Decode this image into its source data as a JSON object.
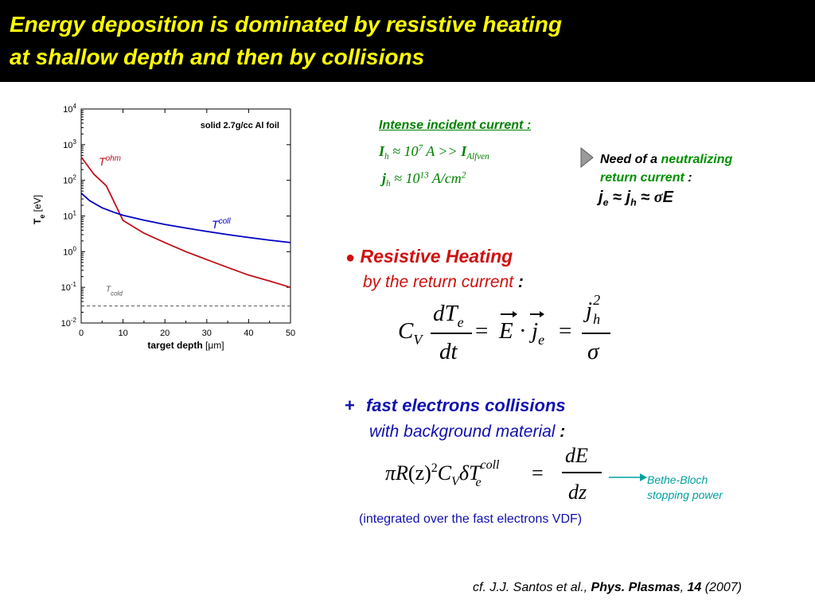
{
  "slide": {
    "title_line1": "Energy deposition is dominated by resistive heating",
    "title_line2": "at shallow depth and then by collisions",
    "title_color": "#ffff00"
  },
  "chart_data": {
    "type": "line",
    "title": "solid 2.7g/cc Al foil",
    "xlabel_bold": "target depth",
    "xlabel_unit": "[μm]",
    "ylabel_main": "T",
    "ylabel_sub": "e",
    "ylabel_unit": "[eV]",
    "xlim": [
      0,
      50
    ],
    "ylim_log10": [
      -2,
      4
    ],
    "y_log_scale": true,
    "x_ticks": [
      "0",
      "10",
      "20",
      "30",
      "40",
      "50"
    ],
    "x_tick_values": [
      0,
      10,
      20,
      30,
      40,
      50
    ],
    "y_tick_base": "10",
    "y_tick_exponents": [
      "-2",
      "-1",
      "0",
      "1",
      "2",
      "3",
      "4"
    ],
    "y_tick_values_log10": [
      -2,
      -1,
      0,
      1,
      2,
      3,
      4
    ],
    "series": [
      {
        "label_main": "T",
        "label_sup": "ohm",
        "color": "#c0101a",
        "x": [
          0,
          3,
          6,
          10,
          15,
          20,
          25,
          30,
          35,
          40,
          45,
          50
        ],
        "y": [
          450,
          150,
          70,
          7.5,
          3.3,
          1.8,
          1.0,
          0.6,
          0.36,
          0.22,
          0.15,
          0.1
        ]
      },
      {
        "label_main": "T",
        "label_sup": "coll",
        "color": "#0000c0",
        "x": [
          0,
          2,
          5,
          8,
          10,
          15,
          20,
          25,
          30,
          35,
          40,
          45,
          50
        ],
        "y": [
          44,
          27,
          17,
          12.5,
          10.5,
          7.6,
          5.8,
          4.6,
          3.7,
          3.0,
          2.5,
          2.1,
          1.8
        ]
      }
    ],
    "reference_line": {
      "label_main": "T",
      "label_sub": "cold",
      "y": 0.03,
      "color": "#555555"
    }
  },
  "incident": {
    "heading": "Intense incident current :",
    "ih_main": "I",
    "ih_sub": "h",
    "ih_mid": " ≈ 10",
    "ih_exp": "7",
    "ih_rest": " A >> ",
    "ih_alf_main": "I",
    "ih_alf_sub": "Alfven",
    "jh_main": "j",
    "jh_sub": "h",
    "jh_mid": " ≈ 10",
    "jh_exp": "13",
    "jh_rest": " A/cm",
    "jh_exp2": "2",
    "color": "#008000"
  },
  "neutralizing": {
    "line1_a": "Need of a ",
    "line1_b": "neutralizing",
    "line2_a": "return current",
    "line2_b": " :",
    "eq_je": "j",
    "eq_je_sub": "e",
    "eq_mid1": " ≈ ",
    "eq_jh": "j",
    "eq_jh_sub": "h",
    "eq_mid2": " ≈ ",
    "eq_sigma": "σ",
    "eq_E": "E",
    "green": "#009000"
  },
  "resistive": {
    "bullet": "●",
    "title": "Resistive Heating",
    "subtitle": "by the return current",
    "colon": " :",
    "color": "#d01010",
    "eq": {
      "C": "C",
      "V": "V",
      "num": "dT",
      "num_sub": "e",
      "den": "dt",
      "eq1": "=",
      "E": "E",
      "dot": "·",
      "j": "j",
      "j_sub": "e",
      "eq2": "=",
      "frac2_num": "j",
      "frac2_num_sub": "h",
      "frac2_num_sup": "2",
      "frac2_den": "σ"
    }
  },
  "collisions": {
    "plus": "+",
    "title": "fast electrons collisions",
    "subtitle": "with background material",
    "colon": " :",
    "color": "#1010b0",
    "eq": {
      "pi": "π",
      "R": "R",
      "z": "(z)",
      "sq": "2",
      "C": "C",
      "V": "V",
      "delta": "δ",
      "T": "T",
      "T_sub": "e",
      "T_sup": "coll",
      "eq": "=",
      "num": "dE",
      "den": "dz"
    },
    "bethe_line1": "Bethe-Bloch",
    "bethe_line2": "stopping power",
    "bethe_color": "#00a0a0",
    "note": "(integrated over the fast electrons VDF)"
  },
  "citation": {
    "a": "cf. J.J. Santos et al., ",
    "journal": "Phys. Plasmas",
    "sep": ", ",
    "vol": "14",
    "year": " (2007)"
  }
}
